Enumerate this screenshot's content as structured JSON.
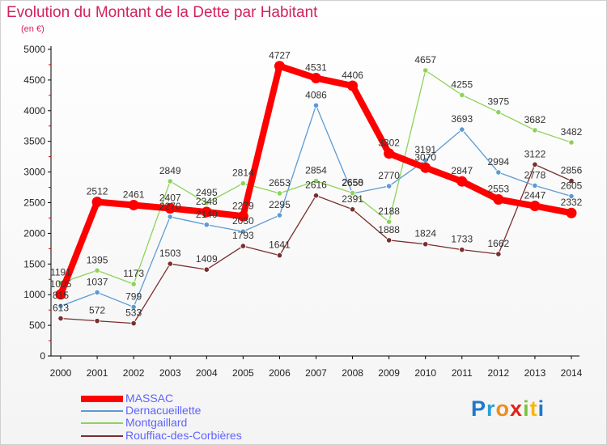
{
  "title": "Evolution du Montant de la Dette par Habitant",
  "unit": "(en €)",
  "logo": "Proxiti",
  "chart_data": {
    "type": "line",
    "title": "Evolution du Montant de la Dette par Habitant",
    "ylabel": "(en €)",
    "xlabel": "",
    "ylim": [
      0,
      5000
    ],
    "yticks": [
      0,
      500,
      1000,
      1500,
      2000,
      2500,
      3000,
      3500,
      4000,
      4500,
      5000
    ],
    "x": [
      "2000",
      "2001",
      "2002",
      "2003",
      "2004",
      "2005",
      "2006",
      "2007",
      "2008",
      "2009",
      "2010",
      "2011",
      "2012",
      "2013",
      "2014"
    ],
    "grid": false,
    "legend_position": "bottom-left",
    "series": [
      {
        "name": "MASSAC",
        "color": "#ff0000",
        "values": [
          1005,
          2512,
          2461,
          2407,
          2348,
          2279,
          4727,
          4531,
          4406,
          3302,
          3070,
          2847,
          2553,
          2447,
          2332
        ]
      },
      {
        "name": "Dernacueillette",
        "color": "#5b9bd5",
        "values": [
          815,
          1037,
          799,
          2270,
          2140,
          2030,
          2295,
          4086,
          2650,
          2770,
          3191,
          3693,
          2994,
          2778,
          2605
        ]
      },
      {
        "name": "Montgaillard",
        "color": "#8ed25b",
        "values": [
          1191,
          1395,
          1173,
          2849,
          2495,
          2814,
          2653,
          2854,
          2658,
          2188,
          4657,
          4255,
          3975,
          3682,
          3482
        ]
      },
      {
        "name": "Rouffiac-des-Corbières",
        "color": "#7a2e2e",
        "values": [
          613,
          572,
          533,
          1503,
          1409,
          1793,
          1641,
          2616,
          2391,
          1888,
          1824,
          1733,
          1662,
          3122,
          2856
        ]
      }
    ],
    "data_labels": [
      {
        "series": 0,
        "x": "2000",
        "text": "1005"
      },
      {
        "series": 0,
        "x": "2001",
        "text": "2512"
      },
      {
        "series": 0,
        "x": "2002",
        "text": "2461"
      },
      {
        "series": 0,
        "x": "2003",
        "text": "2407"
      },
      {
        "series": 0,
        "x": "2004",
        "text": "2348"
      },
      {
        "series": 0,
        "x": "2005",
        "text": "2279"
      },
      {
        "series": 0,
        "x": "2006",
        "text": "4727"
      },
      {
        "series": 0,
        "x": "2007",
        "text": "4531"
      },
      {
        "series": 0,
        "x": "2008",
        "text": "4406"
      },
      {
        "series": 0,
        "x": "2009",
        "text": "3302"
      },
      {
        "series": 0,
        "x": "2010",
        "text": "3070"
      },
      {
        "series": 0,
        "x": "2011",
        "text": "2847"
      },
      {
        "series": 0,
        "x": "2012",
        "text": "2553"
      },
      {
        "series": 0,
        "x": "2013",
        "text": "2447"
      },
      {
        "series": 0,
        "x": "2014",
        "text": "2332"
      },
      {
        "series": 1,
        "x": "2000",
        "text": "815"
      },
      {
        "series": 1,
        "x": "2001",
        "text": "1037"
      },
      {
        "series": 1,
        "x": "2002",
        "text": "799"
      },
      {
        "series": 1,
        "x": "2003",
        "text": "2270"
      },
      {
        "series": 1,
        "x": "2004",
        "text": "2140"
      },
      {
        "series": 1,
        "x": "2005",
        "text": "2030"
      },
      {
        "series": 1,
        "x": "2006",
        "text": "2295"
      },
      {
        "series": 1,
        "x": "2007",
        "text": "4086"
      },
      {
        "series": 1,
        "x": "2008",
        "text": "2650"
      },
      {
        "series": 1,
        "x": "2009",
        "text": "2770"
      },
      {
        "series": 1,
        "x": "2010",
        "text": "3191"
      },
      {
        "series": 1,
        "x": "2011",
        "text": "3693"
      },
      {
        "series": 1,
        "x": "2012",
        "text": "2994"
      },
      {
        "series": 1,
        "x": "2013",
        "text": "2778"
      },
      {
        "series": 1,
        "x": "2014",
        "text": "2605"
      },
      {
        "series": 2,
        "x": "2000",
        "text": "1191"
      },
      {
        "series": 2,
        "x": "2001",
        "text": "1395"
      },
      {
        "series": 2,
        "x": "2002",
        "text": "1173"
      },
      {
        "series": 2,
        "x": "2003",
        "text": "2849"
      },
      {
        "series": 2,
        "x": "2004",
        "text": "2495"
      },
      {
        "series": 2,
        "x": "2005",
        "text": "2814"
      },
      {
        "series": 2,
        "x": "2006",
        "text": "2653"
      },
      {
        "series": 2,
        "x": "2007",
        "text": "2854"
      },
      {
        "series": 2,
        "x": "2008",
        "text": "2658"
      },
      {
        "series": 2,
        "x": "2010",
        "text": "4657"
      },
      {
        "series": 2,
        "x": "2011",
        "text": "4255"
      },
      {
        "series": 2,
        "x": "2012",
        "text": "3975"
      },
      {
        "series": 2,
        "x": "2013",
        "text": "3682"
      },
      {
        "series": 2,
        "x": "2014",
        "text": "3482"
      },
      {
        "series": 2,
        "x": "2009",
        "text": "2188"
      },
      {
        "series": 3,
        "x": "2000",
        "text": "613"
      },
      {
        "series": 3,
        "x": "2001",
        "text": "572"
      },
      {
        "series": 3,
        "x": "2002",
        "text": "533"
      },
      {
        "series": 3,
        "x": "2003",
        "text": "1503"
      },
      {
        "series": 3,
        "x": "2004",
        "text": "1409"
      },
      {
        "series": 3,
        "x": "2005",
        "text": "1793"
      },
      {
        "series": 3,
        "x": "2006",
        "text": "1641"
      },
      {
        "series": 3,
        "x": "2007",
        "text": "2616"
      },
      {
        "series": 3,
        "x": "2008",
        "text": "2391"
      },
      {
        "series": 3,
        "x": "2009",
        "text": "1888"
      },
      {
        "series": 3,
        "x": "2010",
        "text": "1824"
      },
      {
        "series": 3,
        "x": "2011",
        "text": "1733"
      },
      {
        "series": 3,
        "x": "2012",
        "text": "1662"
      },
      {
        "series": 3,
        "x": "2013",
        "text": "3122"
      },
      {
        "series": 3,
        "x": "2014",
        "text": "2856"
      }
    ]
  }
}
